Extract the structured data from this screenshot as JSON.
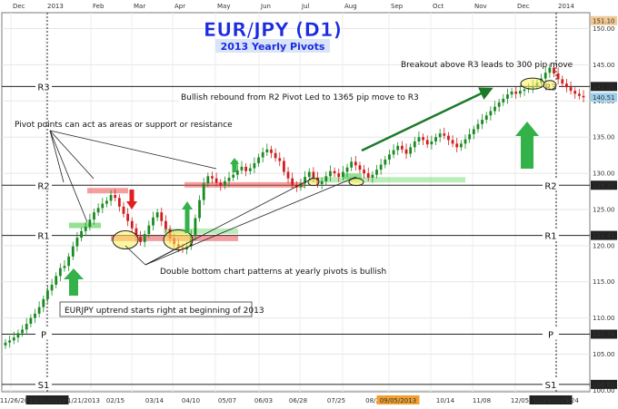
{
  "chart_data": {
    "type": "candlestick",
    "title": "EUR/JPY (D1)",
    "subtitle": "2013 Yearly Pivots",
    "ylim": [
      99.8,
      152.2
    ],
    "y_ticks": [
      100,
      105,
      110,
      115,
      120,
      125,
      130,
      135,
      140,
      145,
      150
    ],
    "y_tick_labels": [
      "100.00",
      "105.00",
      "110.00",
      "115.00",
      "120.00",
      "125.00",
      "130.00",
      "135.00",
      "140.00",
      "145.00",
      "150.00"
    ],
    "months": [
      "Dec",
      "2013",
      "Feb",
      "Mar",
      "Apr",
      "May",
      "Jun",
      "Jul",
      "Aug",
      "Sep",
      "Oct",
      "Nov",
      "Dec",
      "2014"
    ],
    "dates": [
      "11/26/2012",
      "12/31/2012",
      "1/21/2013",
      "02/15",
      "03/14",
      "04/10",
      "05/07",
      "06/03",
      "06/28",
      "07/25",
      "08/2",
      "09/05/2013",
      "10/14",
      "11/08",
      "12/05",
      "12/29/2013",
      "1/24"
    ],
    "pivots": [
      {
        "name": "R3",
        "value": 142.0,
        "label": "142.00"
      },
      {
        "name": "R2",
        "value": 128.35,
        "label": "128.35"
      },
      {
        "name": "R1",
        "value": 121.41,
        "label": "121.41"
      },
      {
        "name": "P",
        "value": 107.76,
        "label": "107.76"
      },
      {
        "name": "S1",
        "value": 100.82,
        "label": "100.82"
      }
    ],
    "price_tags": [
      {
        "value": 151.1,
        "label": "151.10"
      },
      {
        "value": 140.51,
        "label": "140.51"
      }
    ],
    "annotations": {
      "pivot_areas": "Pivot points can act as areas or support or resistance",
      "breakout": "Breakout above R3 leads to 300 pip move",
      "rebound": "Bullish rebound from R2 Pivot Led to 1365 pip move to R3",
      "double_bottom": "Double bottom chart patterns at yearly pivots is bullish",
      "uptrend": "EURJPY uptrend starts right at beginning of 2013"
    },
    "closes": [
      [
        106.6,
        106.9,
        107.3,
        107.9,
        108.4,
        109.2,
        110.0,
        110.6,
        111.5,
        112.6,
        113.8,
        114.6,
        115.8,
        116.9,
        117.2,
        118.5,
        119.9,
        121.1,
        122.0,
        122.6,
        123.6,
        124.6,
        125.2,
        125.8,
        126.2,
        127.0,
        126.6,
        125.4,
        124.4,
        123.4,
        122.4,
        121.2,
        120.5,
        121.6,
        122.8,
        123.9,
        124.6,
        123.4,
        122.3,
        121.0,
        120.2,
        119.8,
        119.5,
        119.9,
        121.4,
        123.8,
        126.3,
        128.6,
        129.6,
        129.3,
        128.7,
        128.3,
        128.9,
        129.4,
        129.8,
        130.4,
        130.9,
        130.3,
        130.7,
        131.4,
        132.2,
        132.9,
        133.3,
        132.8,
        132.1,
        131.7,
        130.2,
        129.3,
        128.4,
        128.1,
        128.6,
        129.5,
        130.2,
        129.4,
        128.5,
        128.9,
        129.6,
        130.3,
        130.0,
        129.5,
        130.2,
        130.8,
        131.6,
        131.1,
        130.5,
        130.0,
        129.4,
        129.8,
        130.5,
        131.2,
        131.9,
        132.6,
        133.2,
        133.8,
        133.3,
        132.7,
        133.6,
        134.4,
        135.0,
        134.6,
        134.0,
        134.4,
        135.0,
        135.5,
        135.2,
        134.6,
        134.1,
        133.6,
        134.1,
        134.7,
        135.4,
        136.1,
        136.8,
        137.4,
        138.0,
        138.6,
        139.2,
        139.8,
        140.3,
        140.9,
        141.3,
        141.0,
        141.4,
        141.6,
        141.8,
        142.1,
        142.5,
        143.1,
        143.9,
        144.6,
        143.8,
        143.0,
        142.4,
        141.9,
        141.4,
        141.0,
        140.7,
        140.5
      ]
    ]
  }
}
